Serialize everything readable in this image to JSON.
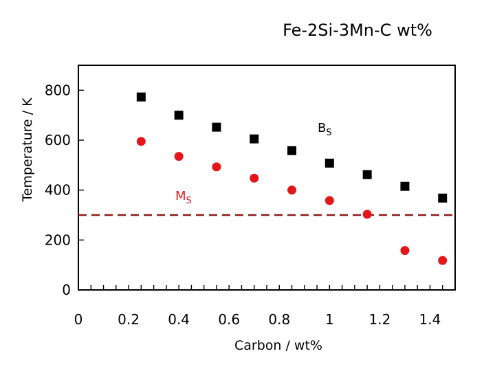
{
  "chart_data": {
    "type": "scatter",
    "title": "Fe-2Si-3Mn-C wt%",
    "xlabel": "Carbon / wt%",
    "ylabel": "Temperature / K",
    "xlim": [
      0,
      1.5
    ],
    "ylim": [
      0,
      900
    ],
    "x_ticks": [
      0,
      0.2,
      0.4,
      0.6,
      0.8,
      1,
      1.2,
      1.4
    ],
    "x_tick_labels": [
      "0",
      "0.2",
      "0.4",
      "0.6",
      "0.8",
      "1",
      "1.2",
      "1.4"
    ],
    "y_ticks": [
      0,
      200,
      400,
      600,
      800
    ],
    "y_tick_labels": [
      "0",
      "200",
      "400",
      "600",
      "800"
    ],
    "series": [
      {
        "label_main": "B",
        "label_sub": "S",
        "marker": "square",
        "color": "#000000",
        "x": [
          0.25,
          0.4,
          0.55,
          0.7,
          0.85,
          1.0,
          1.15,
          1.3,
          1.45
        ],
        "y": [
          773,
          700,
          652,
          605,
          558,
          508,
          462,
          415,
          368
        ]
      },
      {
        "label_main": "M",
        "label_sub": "S",
        "marker": "circle",
        "color": "#e3161a",
        "x": [
          0.25,
          0.4,
          0.55,
          0.7,
          0.85,
          1.0,
          1.15,
          1.3,
          1.45
        ],
        "y": [
          595,
          535,
          493,
          448,
          400,
          358,
          303,
          158,
          118
        ]
      }
    ],
    "reference_line": {
      "y": 300,
      "style": "dashed",
      "color": "#8b1a1a"
    },
    "grid": false,
    "legend": "inline labels"
  }
}
